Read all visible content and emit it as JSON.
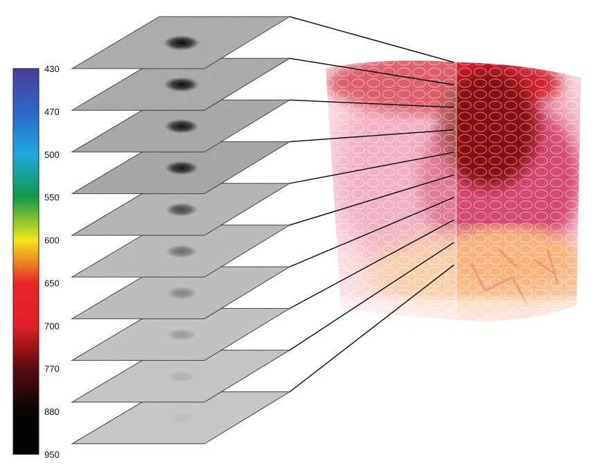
{
  "figure": {
    "colorbar": {
      "tick_labels": [
        "430",
        "470",
        "500",
        "550",
        "600",
        "650",
        "700",
        "770",
        "880",
        "950"
      ],
      "stops": [
        {
          "label": "430",
          "color": "#4a3d96"
        },
        {
          "label": "470",
          "color": "#2f66c8"
        },
        {
          "label": "500",
          "color": "#1fa8dd"
        },
        {
          "label": "550",
          "color": "#0f9a48"
        },
        {
          "label": "600",
          "color": "#f4e61a"
        },
        {
          "label": "650",
          "color": "#e8272a"
        },
        {
          "label": "700",
          "color": "#e21f26"
        },
        {
          "label": "770",
          "color": "#5a0a10"
        },
        {
          "label": "880",
          "color": "#050505"
        },
        {
          "label": "950",
          "color": "#000000"
        }
      ]
    },
    "slices": {
      "count": 10,
      "spot_darkness": [
        0.95,
        0.92,
        0.9,
        0.88,
        0.62,
        0.42,
        0.3,
        0.2,
        0.1,
        0.05
      ],
      "base_shade": [
        "#a9a9a9",
        "#a6a6a6",
        "#a4a4a4",
        "#a2a2a2",
        "#b3b3b3",
        "#bababa",
        "#bdbdbd",
        "#c3c3c3",
        "#c6c6c6",
        "#c9c9c9"
      ]
    },
    "volume": {
      "colors": {
        "top": "#c0141e",
        "core": "#8e0a12",
        "mid": "#e56a8a",
        "bottom": "#f4c48a",
        "haze": "#f2b7c2"
      }
    }
  }
}
